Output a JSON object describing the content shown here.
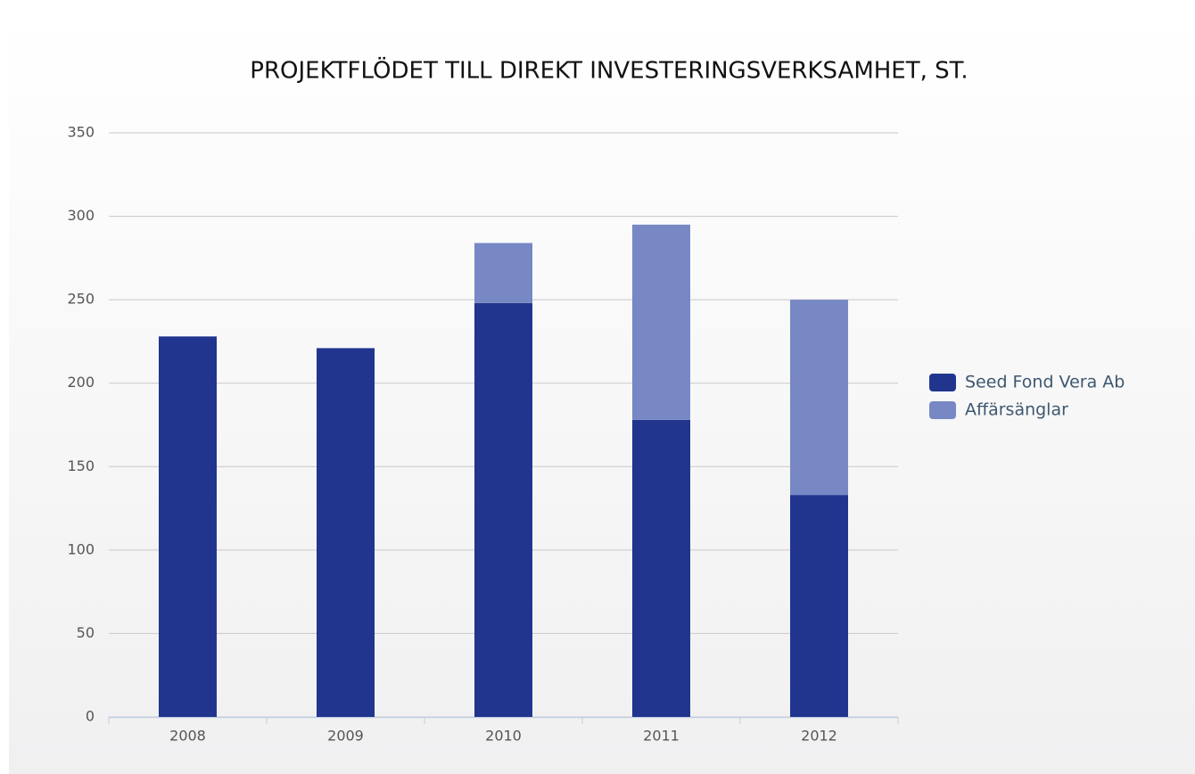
{
  "chart_data": {
    "type": "stacked_bar",
    "title": "PROJEKTFLÖDET TILL DIREKT INVESTERINGSVERKSAMHET, ST.",
    "categories": [
      "2008",
      "2009",
      "2010",
      "2011",
      "2012"
    ],
    "series": [
      {
        "name": "Seed Fond Vera Ab",
        "color": "#21358e",
        "values": [
          228,
          221,
          248,
          178,
          133
        ]
      },
      {
        "name": "Affärsänglar",
        "color": "#7788c4",
        "values": [
          0,
          0,
          36,
          117,
          117
        ]
      }
    ],
    "ylim": [
      0,
      350
    ],
    "yticks": [
      0,
      50,
      100,
      150,
      200,
      250,
      300,
      350
    ],
    "grid": true,
    "legend": "right"
  }
}
